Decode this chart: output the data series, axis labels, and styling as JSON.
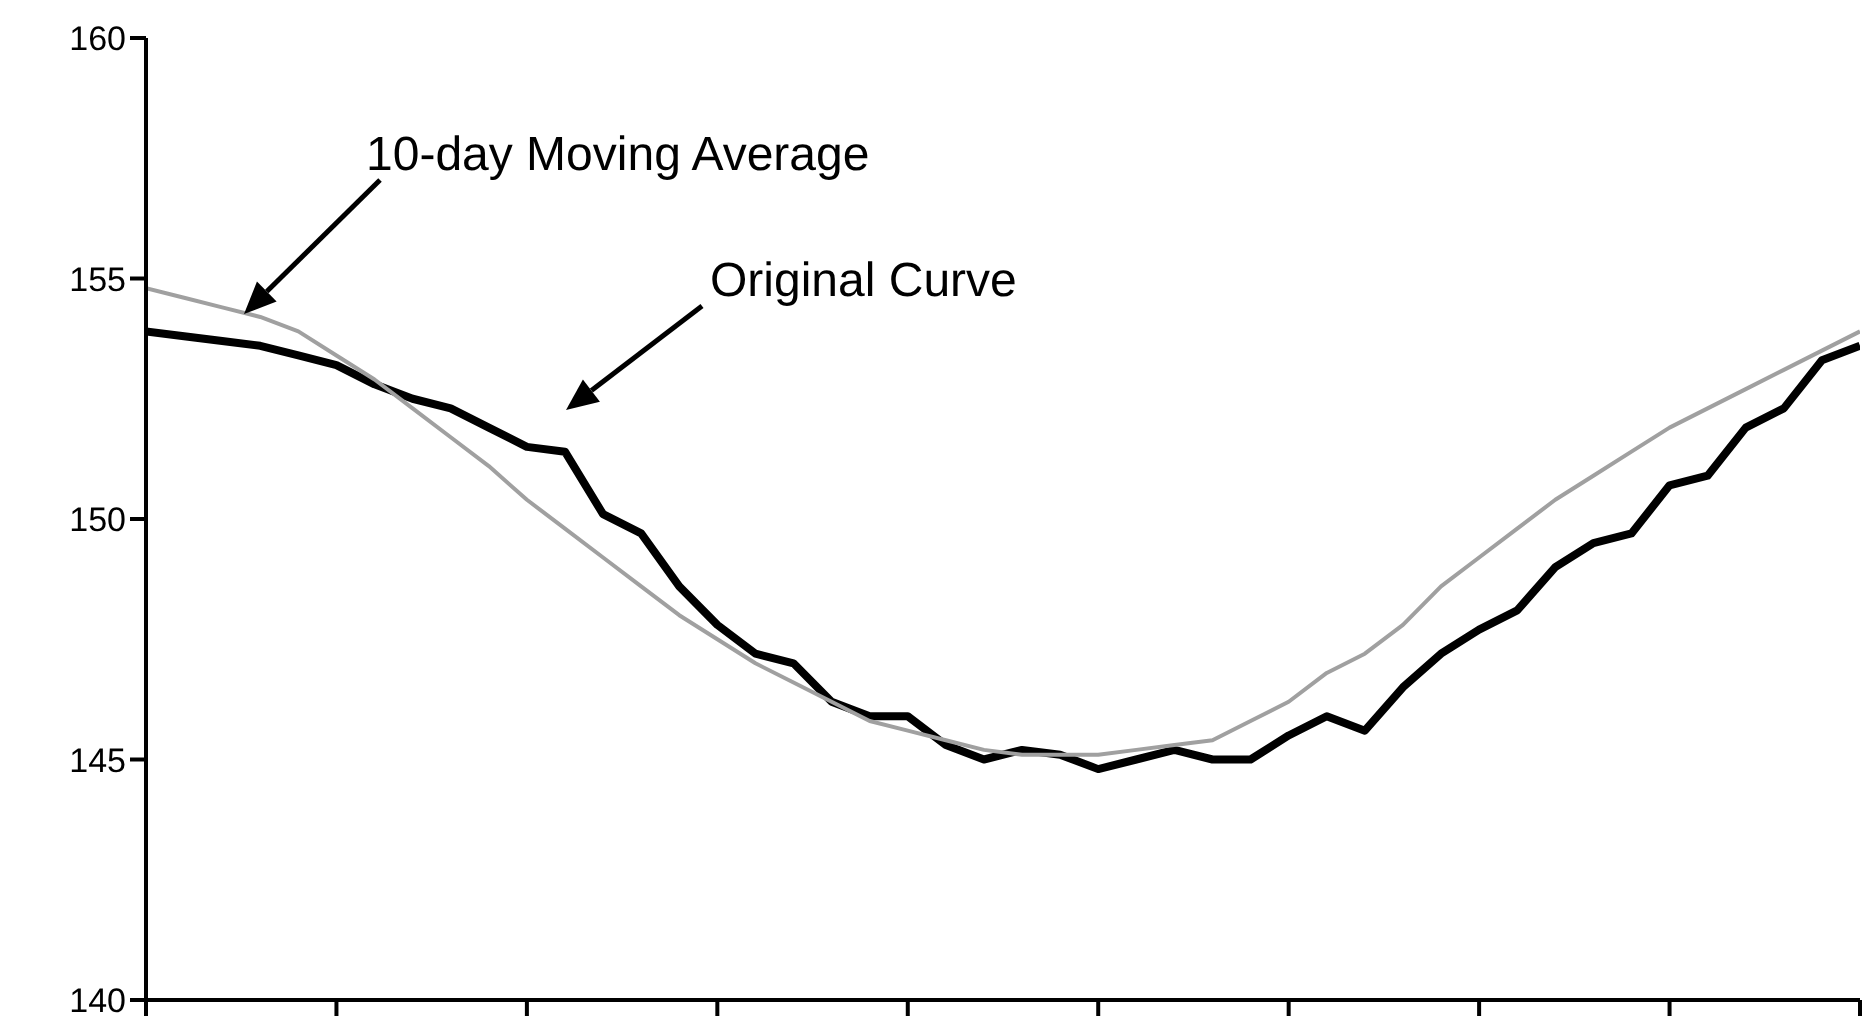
{
  "chart_data": {
    "type": "line",
    "categories": [
      null,
      null,
      null,
      null,
      null,
      null,
      null,
      null,
      null,
      null,
      null,
      null,
      null,
      null,
      null,
      null,
      null,
      null,
      null,
      null,
      null,
      null,
      null,
      null,
      null,
      null,
      null,
      null,
      null,
      null,
      null,
      null,
      null,
      null,
      null,
      null,
      null,
      null,
      null,
      null,
      null,
      null,
      null,
      null,
      null,
      null
    ],
    "series": [
      {
        "name": "Original Curve",
        "color": "#000000",
        "values": [
          153.9,
          153.8,
          153.7,
          153.6,
          153.4,
          153.2,
          152.8,
          152.5,
          152.3,
          151.9,
          151.5,
          151.4,
          150.1,
          149.7,
          148.6,
          147.8,
          147.2,
          147.0,
          146.2,
          145.9,
          145.9,
          145.3,
          145.0,
          145.2,
          145.1,
          144.8,
          145.0,
          145.2,
          145.0,
          145.0,
          145.5,
          145.9,
          145.6,
          146.5,
          147.2,
          147.7,
          148.1,
          149.0,
          149.5,
          149.7,
          150.7,
          150.9,
          151.9,
          152.3,
          153.3,
          153.6
        ]
      },
      {
        "name": "10-day Moving Average",
        "color": "#a0a0a0",
        "values": [
          154.8,
          154.6,
          154.4,
          154.2,
          153.9,
          153.4,
          152.9,
          152.3,
          151.7,
          151.1,
          150.4,
          149.8,
          149.2,
          148.6,
          148.0,
          147.5,
          147.0,
          146.6,
          146.2,
          145.8,
          145.6,
          145.4,
          145.2,
          145.1,
          145.1,
          145.1,
          145.2,
          145.3,
          145.4,
          145.8,
          146.2,
          146.8,
          147.2,
          147.8,
          148.6,
          149.2,
          149.8,
          150.4,
          150.9,
          151.4,
          151.9,
          152.3,
          152.7,
          153.1,
          153.5,
          153.9
        ]
      }
    ],
    "ylim": [
      140,
      160
    ],
    "yticks": [
      140,
      145,
      150,
      155,
      160
    ],
    "tick_labels": "y"
  }
}
